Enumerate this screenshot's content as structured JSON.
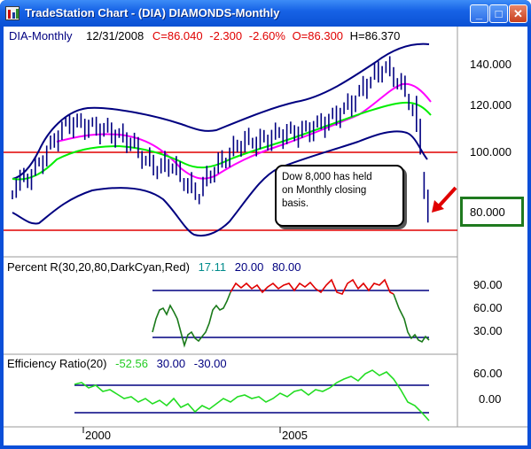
{
  "window": {
    "title": "TradeStation Chart - (DIA) DIAMONDS-Monthly",
    "minimize_glyph": "_",
    "maximize_glyph": "□",
    "close_glyph": "✕"
  },
  "price_pane": {
    "symbol": "DIA-Monthly",
    "date": "12/31/2008",
    "close": "C=86.040",
    "change": "-2.300",
    "change_pct": "-2.60%",
    "open": "O=86.300",
    "high": "H=86.370",
    "axis_labels": [
      "140.000",
      "120.000",
      "100.000",
      "80.000"
    ],
    "callout_lines": [
      "Dow 8,000 has held",
      "on Monthly closing",
      "basis."
    ],
    "support_box_label": "80.000",
    "colors": {
      "upper_band": "#000080",
      "fast_ma": "#ff00ff",
      "slow_ma": "#00ee00",
      "hline": "#e00000",
      "arrow": "#e00000",
      "box": "#1f7a1f"
    }
  },
  "percent_r_pane": {
    "title": "Percent R(30,20,80,DarkCyan,Red)",
    "value": "17.11",
    "level_low": "20.00",
    "level_high": "80.00",
    "axis_labels": [
      "90.00",
      "60.00",
      "30.00"
    ]
  },
  "efficiency_pane": {
    "title": "Efficiency Ratio(20)",
    "value": "-52.56",
    "level_high": "30.00",
    "level_low": "-30.00",
    "axis_labels": [
      "60.00",
      "0.00"
    ]
  },
  "time_axis": {
    "labels": [
      "2000",
      "2005"
    ]
  }
}
